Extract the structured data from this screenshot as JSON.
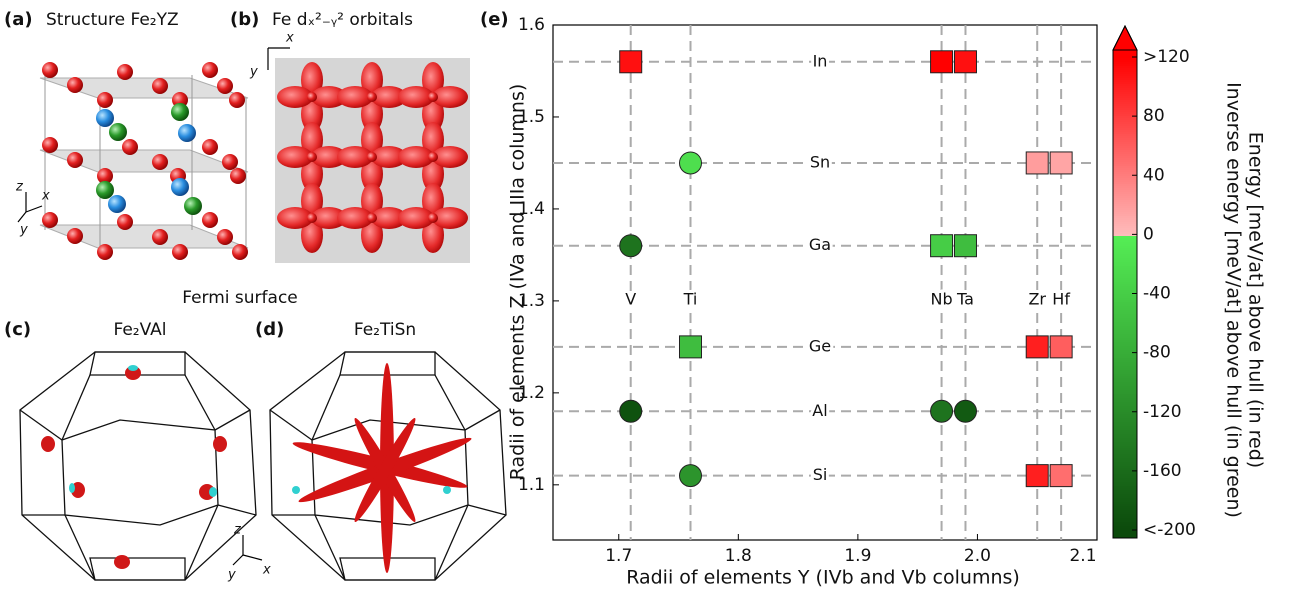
{
  "figure": {
    "panel_a": {
      "label": "(a)",
      "title": "Structure Fe₂YZ",
      "axes": [
        "z",
        "x",
        "y"
      ]
    },
    "panel_b": {
      "label": "(b)",
      "title": "Fe dₓ²₋ᵧ² orbitals",
      "axes": [
        "x",
        "y"
      ]
    },
    "fermi_title": "Fermi surface",
    "panel_c": {
      "label": "(c)",
      "title": "Fe₂VAl",
      "axes": [
        "z",
        "y",
        "x"
      ]
    },
    "panel_d": {
      "label": "(d)",
      "title": "Fe₂TiSn"
    },
    "panel_e": {
      "label": "(e)"
    }
  },
  "chart_data": {
    "type": "scatter",
    "x_label": "Radii of elements Y (IVb and Vb columns)",
    "y_label": "Radii of elements Z (IVa and IIIa columns)",
    "xlim": [
      1.645,
      2.1
    ],
    "ylim": [
      1.04,
      1.6
    ],
    "xticks": [
      1.7,
      1.8,
      1.9,
      {
        "value": 2,
        "label": "2.0"
      },
      2.1
    ],
    "yticks": [
      1.1,
      1.2,
      1.3,
      1.4,
      1.5,
      1.6
    ],
    "column_labels": {
      "names": [
        "V",
        "Ti",
        "Nb",
        "Ta",
        "Zr",
        "Hf"
      ],
      "x": [
        1.71,
        1.76,
        1.97,
        1.99,
        2.05,
        2.07
      ]
    },
    "row_labels": {
      "names": [
        "In",
        "Sn",
        "Ga",
        "Ge",
        "Al",
        "Si"
      ],
      "y": [
        1.56,
        1.45,
        1.36,
        1.25,
        1.18,
        1.11
      ]
    },
    "points": {
      "x": [
        1.71,
        1.97,
        1.99,
        1.76,
        2.05,
        2.07,
        1.71,
        1.97,
        1.99,
        1.76,
        2.05,
        2.07,
        1.71,
        1.97,
        1.99,
        1.76,
        2.05,
        2.07
      ],
      "y": [
        1.56,
        1.56,
        1.56,
        1.45,
        1.45,
        1.45,
        1.36,
        1.36,
        1.36,
        1.25,
        1.25,
        1.25,
        1.18,
        1.18,
        1.18,
        1.11,
        1.11,
        1.11
      ],
      "energy": [
        110,
        120,
        110,
        -20,
        20,
        15,
        -150,
        -40,
        -60,
        -60,
        100,
        60,
        -190,
        -150,
        -180,
        -110,
        100,
        50
      ],
      "marker": [
        "square",
        "square",
        "square",
        "circle",
        "square",
        "square",
        "circle",
        "square",
        "square",
        "square",
        "square",
        "square",
        "circle",
        "circle",
        "circle",
        "circle",
        "square",
        "square"
      ]
    },
    "colorbar": {
      "label_red": "Energy [meV/at] above hull (in red)",
      "label_green": "Inverse energy [meV/at] above hull (in green)",
      "clim": [
        -200,
        120
      ],
      "ticks": [
        {
          "value": 120,
          "label": ">120"
        },
        80,
        40,
        0,
        -40,
        -80,
        -120,
        -160,
        {
          "value": -200,
          "label": "<-200"
        }
      ],
      "negative_colors": [
        "#0b4a0b",
        "#55ee55"
      ],
      "positive_colors": [
        "#ffbcbc",
        "#ff0000"
      ]
    }
  }
}
